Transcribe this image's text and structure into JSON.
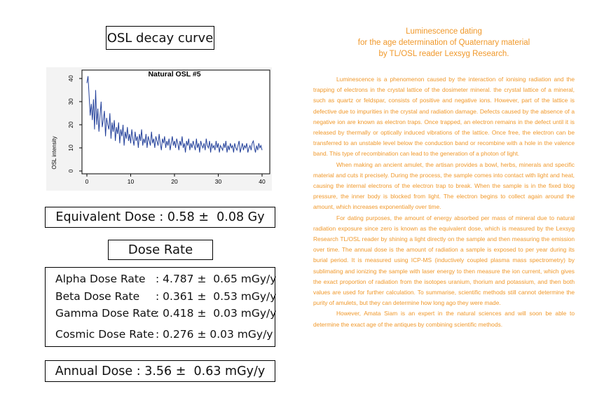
{
  "decay_panel": {
    "title": "OSL decay curve"
  },
  "chart_data": {
    "type": "line",
    "title": "Natural OSL #5",
    "xlabel": "",
    "ylabel": "OSL intensity",
    "xlim": [
      0,
      40
    ],
    "ylim": [
      0,
      40
    ],
    "xticks": [
      "0",
      "10",
      "20",
      "30",
      "40"
    ],
    "yticks": [
      "0",
      "10",
      "20",
      "30",
      "40"
    ],
    "grid": false,
    "line_color": "#23409a",
    "series": [
      {
        "x": [
          0.0,
          0.25,
          0.5,
          0.75,
          1.0,
          1.25,
          1.5,
          1.75,
          2.0,
          2.25,
          2.5,
          2.75,
          3.0,
          3.25,
          3.5,
          3.75,
          4.0,
          4.25,
          4.5,
          4.75,
          5.0,
          5.25,
          5.5,
          5.75,
          6.0,
          6.25,
          6.5,
          6.75,
          7.0,
          7.25,
          7.5,
          7.75,
          8.0,
          8.25,
          8.5,
          8.75,
          9.0,
          9.25,
          9.5,
          9.75,
          10.0,
          10.25,
          10.5,
          10.75,
          11.0,
          11.25,
          11.5,
          11.75,
          12.0,
          12.25,
          12.5,
          12.75,
          13.0,
          13.25,
          13.5,
          13.75,
          14.0,
          14.25,
          14.5,
          14.75,
          15.0,
          15.25,
          15.5,
          15.75,
          16.0,
          16.25,
          16.5,
          16.75,
          17.0,
          17.25,
          17.5,
          17.75,
          18.0,
          18.25,
          18.5,
          18.75,
          19.0,
          19.25,
          19.5,
          19.75,
          20.0,
          20.25,
          20.5,
          20.75,
          21.0,
          21.25,
          21.5,
          21.75,
          22.0,
          22.25,
          22.5,
          22.75,
          23.0,
          23.25,
          23.5,
          23.75,
          24.0,
          24.25,
          24.5,
          24.75,
          25.0,
          25.25,
          25.5,
          25.75,
          26.0,
          26.25,
          26.5,
          26.75,
          27.0,
          27.25,
          27.5,
          27.75,
          28.0,
          28.25,
          28.5,
          28.75,
          29.0,
          29.25,
          29.5,
          29.75,
          30.0,
          30.25,
          30.5,
          30.75,
          31.0,
          31.25,
          31.5,
          31.75,
          32.0,
          32.25,
          32.5,
          32.75,
          33.0,
          33.25,
          33.5,
          33.75,
          34.0,
          34.25,
          34.5,
          34.75,
          35.0,
          35.25,
          35.5,
          35.75,
          36.0,
          36.25,
          36.5,
          36.75,
          37.0,
          37.25,
          37.5,
          37.75,
          38.0,
          38.25,
          38.5,
          38.75,
          39.0,
          39.25,
          39.5,
          39.75,
          40.0
        ],
        "y": [
          38,
          41,
          33,
          24,
          29,
          22,
          31,
          18,
          35,
          20,
          27,
          17,
          24,
          30,
          19,
          22,
          26,
          15,
          23,
          20,
          18,
          25,
          14,
          21,
          17,
          22,
          13,
          19,
          16,
          21,
          12,
          18,
          15,
          20,
          11,
          17,
          14,
          19,
          13,
          16,
          12,
          18,
          14,
          11,
          17,
          13,
          15,
          10,
          16,
          13,
          18,
          11,
          14,
          12,
          16,
          10,
          15,
          13,
          11,
          17,
          12,
          14,
          10,
          15,
          13,
          11,
          16,
          12,
          9,
          14,
          12,
          15,
          10,
          13,
          11,
          14,
          9,
          12,
          15,
          11,
          13,
          10,
          14,
          12,
          9,
          13,
          11,
          15,
          10,
          12,
          8,
          13,
          11,
          14,
          9,
          12,
          10,
          13,
          11,
          9,
          14,
          10,
          12,
          8,
          13,
          11,
          10,
          12,
          9,
          14,
          11,
          10,
          13,
          8,
          12,
          10,
          11,
          9,
          13,
          10,
          12,
          8,
          11,
          10,
          9,
          12,
          10,
          13,
          8,
          11,
          9,
          12,
          10,
          11,
          8,
          12,
          10,
          9,
          11,
          13,
          8,
          10,
          12,
          9,
          11,
          10,
          12,
          8,
          10,
          11,
          9,
          12,
          13,
          10,
          8,
          11,
          9,
          12,
          10,
          11,
          9
        ]
      }
    ]
  },
  "equivalent_dose": {
    "label": "Equivalent Dose : ",
    "value": "0.58 ±  0.08 Gy"
  },
  "dose_rate": {
    "title": "Dose Rate",
    "rows": [
      {
        "name": "Alpha Dose Rate",
        "value": ": 4.787 ±  0.65 mGy/y"
      },
      {
        "name": "Beta Dose Rate",
        "value": ": 0.361 ±  0.53 mGy/y"
      },
      {
        "name": "Gamma Dose Rate",
        "value": ": 0.418 ±  0.03 mGy/y"
      },
      {
        "name": "Cosmic Dose Rate",
        "value": ": 0.276 ± 0.03 mGy/y"
      }
    ]
  },
  "annual_dose": {
    "label": "Annual Dose : ",
    "value": "3.56 ±  0.63 mGy/y"
  },
  "article": {
    "title_lines": [
      "Luminescence dating",
      "for the age determination of Quaternary material",
      "by TL/OSL reader Lexsyg Research."
    ],
    "paragraphs": [
      "Luminescence is a phenomenon caused by the interaction of ionising radiation and the trapping of electrons in the crystal lattice of the dosimeter mineral. the crystal lattice of a mineral, such as quartz or feldspar, consists of positive and negative ions. However, part of the lattice is defective due to impurities in the crystal and radiation damage. Defects caused by the absence of a negative ion are known as electron traps. Once trapped, an electron remains in the defect until it is released by thermally or optically induced vibrations of the lattice. Once free, the electron can be transferred to an unstable level below the conduction band or recombine with a hole in the valence band. This type of recombination can lead to the generation of a photon of light.",
      "When making an ancient amulet, the artisan provides a bowl, herbs, minerals and specific material and cuts it precisely. During the process, the sample comes into contact with light and heat, causing the internal electrons of the electron trap to break. When the sample is in the fixed blog pressure, the inner body is blocked from light. The electron begins to collect again around the amount, which increases exponentially over time.",
      "For dating purposes, the amount of energy absorbed per mass of mineral due to natural radiation exposure since zero is known as the equivalent dose, which is measured by the Lexsyg Research TL/OSL reader by shining a light directly on the sample and then measuring the emission over time. The annual dose is the amount of radiation a sample is exposed to per year during its burial period. It is measured using ICP-MS (inductively coupled plasma mass spectrometry) by sublimating and ionizing the sample with laser energy to then measure the ion current, which gives the exact proportion of radiation from the isotopes uranium, thorium and potassium, and then both values are used for further calculation. To summarise, scientific methods still cannot determine the purity of amulets, but they can determine how long ago they were made.",
      "However, Amata Siam is an expert in the natural sciences and will soon be able to determine the exact age of the antiques by combining scientific methods."
    ]
  }
}
